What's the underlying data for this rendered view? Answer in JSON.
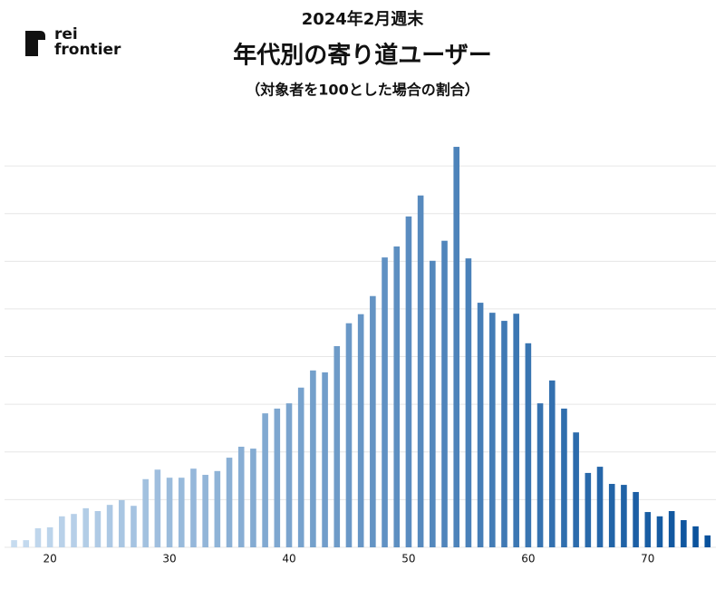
{
  "chart_data": {
    "type": "bar",
    "supertitle": "2024年2月週末",
    "title": "年代別の寄り道ユーザー",
    "subtitle": "（対象者を100とした場合の割合）",
    "logo": [
      "rei",
      "frontier"
    ],
    "x": [
      17,
      18,
      19,
      20,
      21,
      22,
      23,
      24,
      25,
      26,
      27,
      28,
      29,
      30,
      31,
      32,
      33,
      34,
      35,
      36,
      37,
      38,
      39,
      40,
      41,
      42,
      43,
      44,
      45,
      46,
      47,
      48,
      49,
      50,
      51,
      52,
      53,
      54,
      55,
      56,
      57,
      58,
      59,
      60,
      61,
      62,
      63,
      64,
      65,
      66,
      67,
      68,
      69,
      70,
      71,
      72,
      73,
      74,
      75
    ],
    "values": [
      0.15,
      0.15,
      0.4,
      0.42,
      0.65,
      0.7,
      0.82,
      0.76,
      0.89,
      0.99,
      0.87,
      1.43,
      1.63,
      1.46,
      1.46,
      1.65,
      1.52,
      1.6,
      1.88,
      2.11,
      2.07,
      2.81,
      2.91,
      3.02,
      3.35,
      3.71,
      3.67,
      4.22,
      4.7,
      4.89,
      5.27,
      6.08,
      6.31,
      6.94,
      7.38,
      6.01,
      6.43,
      8.4,
      6.06,
      5.13,
      4.92,
      4.75,
      4.9,
      4.28,
      3.02,
      3.5,
      2.91,
      2.41,
      1.56,
      1.69,
      1.33,
      1.31,
      1.16,
      0.74,
      0.65,
      0.76,
      0.57,
      0.44,
      0.25
    ],
    "color_scale": [
      "#c6dbef",
      "#08519c"
    ],
    "xlim": [
      16.2,
      75.7
    ],
    "xticks": [
      20,
      30,
      40,
      50,
      60,
      70
    ],
    "ylim": [
      0,
      8.8
    ],
    "yticks": [
      0,
      1,
      2,
      3,
      4,
      5,
      6,
      7,
      8
    ],
    "grid": true
  }
}
